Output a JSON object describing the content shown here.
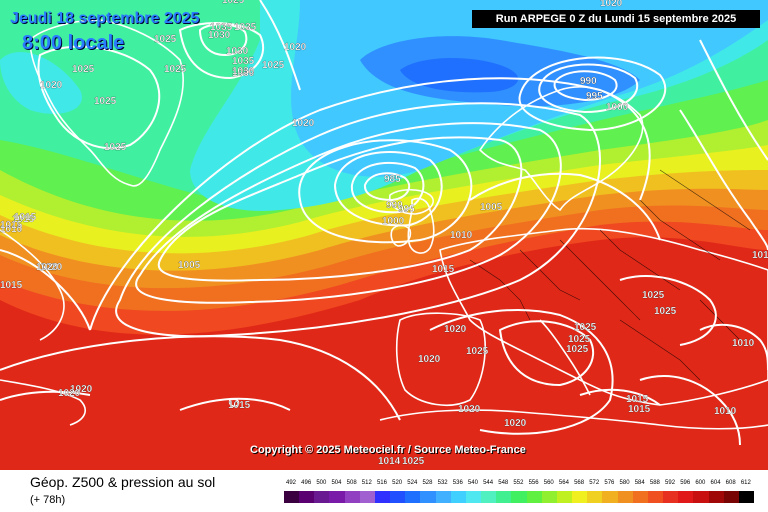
{
  "header": {
    "date": "Jeudi 18 septembre 2025",
    "time": "8:00 locale",
    "run": "Run ARPEGE 0 Z du Lundi 15 septembre 2025",
    "copyright": "Copyright © 2025 Meteociel.fr / Source Meteo-France"
  },
  "footer": {
    "title": "Géop. Z500 & pression au sol",
    "subtitle": "(+ 78h)"
  },
  "scale": {
    "values": [
      "492",
      "496",
      "500",
      "504",
      "508",
      "512",
      "516",
      "520",
      "524",
      "528",
      "532",
      "536",
      "540",
      "544",
      "548",
      "552",
      "556",
      "560",
      "564",
      "568",
      "572",
      "576",
      "580",
      "584",
      "588",
      "592",
      "596",
      "600",
      "604",
      "608",
      "612"
    ],
    "colors": [
      "#3a0040",
      "#5a0070",
      "#6a1a90",
      "#7a1aa8",
      "#9040c0",
      "#a060d0",
      "#3030ff",
      "#2050ff",
      "#2070ff",
      "#3090ff",
      "#40b0ff",
      "#40d0ff",
      "#50e8f0",
      "#50f0c0",
      "#40f090",
      "#40f060",
      "#60f040",
      "#90f030",
      "#c0f020",
      "#f0f020",
      "#f0d020",
      "#f0b020",
      "#f09020",
      "#f07020",
      "#f05020",
      "#e83020",
      "#e01818",
      "#c81010",
      "#a00808",
      "#780404",
      "#000000"
    ]
  },
  "pressure_labels": [
    "1025",
    "1035",
    "1035",
    "1030",
    "1030",
    "1025",
    "1030",
    "1035",
    "1030",
    "1025",
    "1020",
    "1025",
    "1025",
    "1025",
    "1025",
    "1020",
    "990",
    "995",
    "1000",
    "1020",
    "985",
    "990",
    "995",
    "1000",
    "1005",
    "1010",
    "1005",
    "1015",
    "1015",
    "1020",
    "1010",
    "1020",
    "1015",
    "1025",
    "1025",
    "1025",
    "1025",
    "1010",
    "1020",
    "1020",
    "1025",
    "1025",
    "1020",
    "1015",
    "1015",
    "1010",
    "1015",
    "1020",
    "1020",
    "1020",
    "1020",
    "1014",
    "1025",
    "1015",
    "1010",
    "1015"
  ]
}
